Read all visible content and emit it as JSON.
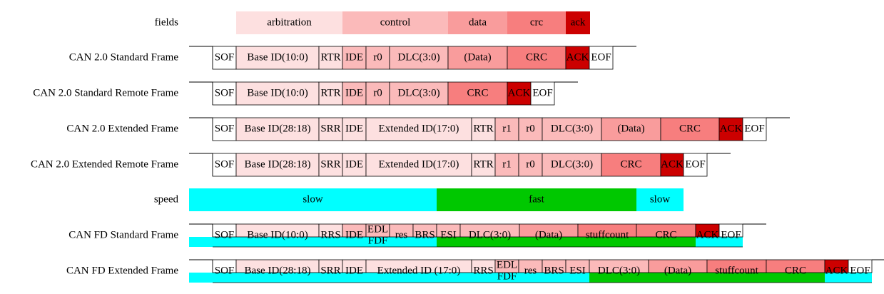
{
  "rows": [
    {
      "label": "fields",
      "cells": [
        {
          "text": "arbitration",
          "color": "#fde0e0"
        },
        {
          "text": "control",
          "color": "#fbbaba"
        },
        {
          "text": "data",
          "color": "#f99c9c"
        },
        {
          "text": "crc",
          "color": "#f77e7e"
        },
        {
          "text": "ack",
          "color": "#cc0000"
        }
      ]
    },
    {
      "label": "CAN 2.0 Standard Frame",
      "cells": [
        {
          "text": "SOF",
          "color": "#ffffff"
        },
        {
          "text": "Base ID(10:0)",
          "color": "#fde0e0"
        },
        {
          "text": "RTR",
          "color": "#fde0e0"
        },
        {
          "text": "IDE",
          "color": "#fbbaba"
        },
        {
          "text": "r0",
          "color": "#fbbaba"
        },
        {
          "text": "DLC(3:0)",
          "color": "#fbbaba"
        },
        {
          "text": "(Data)",
          "color": "#f99c9c"
        },
        {
          "text": "CRC",
          "color": "#f77e7e"
        },
        {
          "text": "ACK",
          "color": "#cc0000"
        },
        {
          "text": "EOF",
          "color": "#ffffff"
        }
      ]
    },
    {
      "label": "CAN 2.0 Standard Remote Frame",
      "cells": [
        {
          "text": "SOF",
          "color": "#ffffff"
        },
        {
          "text": "Base ID(10:0)",
          "color": "#fde0e0"
        },
        {
          "text": "RTR",
          "color": "#fde0e0"
        },
        {
          "text": "IDE",
          "color": "#fbbaba"
        },
        {
          "text": "r0",
          "color": "#fbbaba"
        },
        {
          "text": "DLC(3:0)",
          "color": "#fbbaba"
        },
        {
          "text": "CRC",
          "color": "#f77e7e"
        },
        {
          "text": "ACK",
          "color": "#cc0000"
        },
        {
          "text": "EOF",
          "color": "#ffffff"
        }
      ]
    },
    {
      "label": "CAN 2.0 Extended Frame",
      "cells": [
        {
          "text": "SOF",
          "color": "#ffffff"
        },
        {
          "text": "Base ID(28:18)",
          "color": "#fde0e0"
        },
        {
          "text": "SRR",
          "color": "#fde0e0"
        },
        {
          "text": "IDE",
          "color": "#fde0e0"
        },
        {
          "text": "Extended ID(17:0)",
          "color": "#fde0e0"
        },
        {
          "text": "RTR",
          "color": "#fde0e0"
        },
        {
          "text": "r1",
          "color": "#fbbaba"
        },
        {
          "text": "r0",
          "color": "#fbbaba"
        },
        {
          "text": "DLC(3:0)",
          "color": "#fbbaba"
        },
        {
          "text": "(Data)",
          "color": "#f99c9c"
        },
        {
          "text": "CRC",
          "color": "#f77e7e"
        },
        {
          "text": "ACK",
          "color": "#cc0000"
        },
        {
          "text": "EOF",
          "color": "#ffffff"
        }
      ]
    },
    {
      "label": "CAN 2.0 Extended Remote Frame",
      "cells": [
        {
          "text": "SOF",
          "color": "#ffffff"
        },
        {
          "text": "Base ID(28:18)",
          "color": "#fde0e0"
        },
        {
          "text": "SRR",
          "color": "#fde0e0"
        },
        {
          "text": "IDE",
          "color": "#fde0e0"
        },
        {
          "text": "Extended ID(17:0)",
          "color": "#fde0e0"
        },
        {
          "text": "RTR",
          "color": "#fde0e0"
        },
        {
          "text": "r1",
          "color": "#fbbaba"
        },
        {
          "text": "r0",
          "color": "#fbbaba"
        },
        {
          "text": "DLC(3:0)",
          "color": "#fbbaba"
        },
        {
          "text": "CRC",
          "color": "#f77e7e"
        },
        {
          "text": "ACK",
          "color": "#cc0000"
        },
        {
          "text": "EOF",
          "color": "#ffffff"
        }
      ]
    },
    {
      "label": "speed",
      "cells": [
        {
          "text": "slow",
          "color": "#00ffff"
        },
        {
          "text": "fast",
          "color": "#00c800"
        },
        {
          "text": "slow",
          "color": "#00ffff"
        }
      ]
    },
    {
      "label": "CAN FD Standard Frame",
      "cells": [
        {
          "text": "SOF",
          "color": "#ffffff"
        },
        {
          "text": "Base ID(10:0)",
          "color": "#fde0e0"
        },
        {
          "text": "RRS",
          "color": "#fde0e0"
        },
        {
          "text": "IDE",
          "color": "#fbbaba"
        },
        {
          "text": [
            "EDL",
            "FDF"
          ],
          "color": "#fbbaba"
        },
        {
          "text": "res",
          "color": "#fbbaba"
        },
        {
          "text": "BRS",
          "color": "#fbbaba"
        },
        {
          "text": "ESI",
          "color": "#fbbaba"
        },
        {
          "text": "DLC(3:0)",
          "color": "#fbbaba"
        },
        {
          "text": "(Data)",
          "color": "#f99c9c"
        },
        {
          "text": "stuffcount",
          "color": "#f77e7e"
        },
        {
          "text": "CRC",
          "color": "#f77e7e"
        },
        {
          "text": "ACK",
          "color": "#cc0000"
        },
        {
          "text": "EOF",
          "color": "#ffffff"
        }
      ]
    },
    {
      "label": "CAN FD Extended Frame",
      "cells": [
        {
          "text": "SOF",
          "color": "#ffffff"
        },
        {
          "text": "Base ID(28:18)",
          "color": "#fde0e0"
        },
        {
          "text": "SRR",
          "color": "#fde0e0"
        },
        {
          "text": "IDE",
          "color": "#fde0e0"
        },
        {
          "text": "Extended ID (17:0)",
          "color": "#fde0e0"
        },
        {
          "text": "RRS",
          "color": "#fde0e0"
        },
        {
          "text": [
            "EDL",
            "FDF"
          ],
          "color": "#fbbaba"
        },
        {
          "text": "res",
          "color": "#fbbaba"
        },
        {
          "text": "BRS",
          "color": "#fbbaba"
        },
        {
          "text": "ESI",
          "color": "#fbbaba"
        },
        {
          "text": "DLC(3:0)",
          "color": "#fbbaba"
        },
        {
          "text": "(Data)",
          "color": "#f99c9c"
        },
        {
          "text": "stuffcount",
          "color": "#f77e7e"
        },
        {
          "text": "CRC",
          "color": "#f77e7e"
        },
        {
          "text": "ACK",
          "color": "#cc0000"
        },
        {
          "text": "EOF",
          "color": "#ffffff"
        }
      ]
    }
  ]
}
